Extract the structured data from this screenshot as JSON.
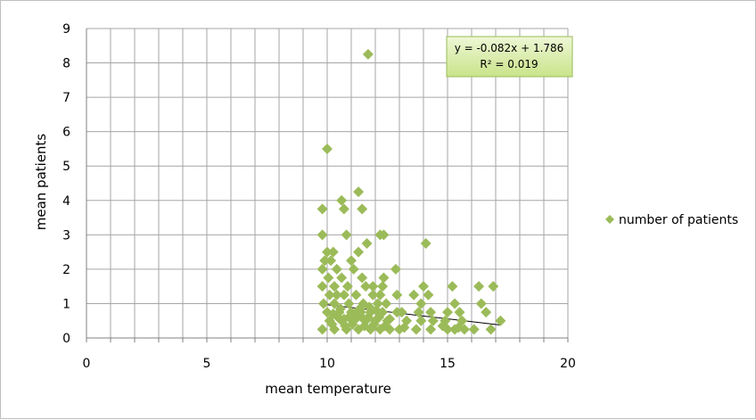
{
  "chart_data": {
    "type": "scatter",
    "xlabel": "mean temperature",
    "ylabel": "mean patients",
    "xlim": [
      0,
      20
    ],
    "ylim": [
      0,
      9
    ],
    "x_ticks": [
      0,
      5,
      10,
      15,
      20
    ],
    "y_ticks": [
      0,
      1,
      2,
      3,
      4,
      5,
      6,
      7,
      8,
      9
    ],
    "grid": true,
    "legend_position": "right",
    "marker_color": "#9bbb59",
    "series": [
      {
        "name": "number of patients",
        "points": [
          [
            11.7,
            8.25
          ],
          [
            10.0,
            5.5
          ],
          [
            11.3,
            4.25
          ],
          [
            10.6,
            4.0
          ],
          [
            9.8,
            3.75
          ],
          [
            10.7,
            3.75
          ],
          [
            11.45,
            3.75
          ],
          [
            9.8,
            3.0
          ],
          [
            10.8,
            3.0
          ],
          [
            12.2,
            3.0
          ],
          [
            12.35,
            3.0
          ],
          [
            11.65,
            2.75
          ],
          [
            14.1,
            2.75
          ],
          [
            10.0,
            2.5
          ],
          [
            10.25,
            2.5
          ],
          [
            11.3,
            2.5
          ],
          [
            9.9,
            2.25
          ],
          [
            10.15,
            2.25
          ],
          [
            11.0,
            2.25
          ],
          [
            9.8,
            2.0
          ],
          [
            10.4,
            2.0
          ],
          [
            11.1,
            2.0
          ],
          [
            12.85,
            2.0
          ],
          [
            10.05,
            1.75
          ],
          [
            10.6,
            1.75
          ],
          [
            11.45,
            1.75
          ],
          [
            12.35,
            1.75
          ],
          [
            9.8,
            1.5
          ],
          [
            10.3,
            1.5
          ],
          [
            10.85,
            1.5
          ],
          [
            11.6,
            1.5
          ],
          [
            11.9,
            1.5
          ],
          [
            12.3,
            1.5
          ],
          [
            14.0,
            1.5
          ],
          [
            15.2,
            1.5
          ],
          [
            16.3,
            1.5
          ],
          [
            16.9,
            1.5
          ],
          [
            10.1,
            1.25
          ],
          [
            10.4,
            1.25
          ],
          [
            10.7,
            1.25
          ],
          [
            11.2,
            1.25
          ],
          [
            11.9,
            1.25
          ],
          [
            12.2,
            1.25
          ],
          [
            12.9,
            1.25
          ],
          [
            13.6,
            1.25
          ],
          [
            14.2,
            1.25
          ],
          [
            9.85,
            1.0
          ],
          [
            10.3,
            1.0
          ],
          [
            10.9,
            1.0
          ],
          [
            11.5,
            1.0
          ],
          [
            12.1,
            1.0
          ],
          [
            12.45,
            1.0
          ],
          [
            13.9,
            1.0
          ],
          [
            15.3,
            1.0
          ],
          [
            16.4,
            1.0
          ],
          [
            10.0,
            0.75
          ],
          [
            10.5,
            0.75
          ],
          [
            11.0,
            0.75
          ],
          [
            11.4,
            0.75
          ],
          [
            11.8,
            0.75
          ],
          [
            12.3,
            0.75
          ],
          [
            12.9,
            0.75
          ],
          [
            13.1,
            0.75
          ],
          [
            13.8,
            0.75
          ],
          [
            14.3,
            0.75
          ],
          [
            15.0,
            0.75
          ],
          [
            15.5,
            0.75
          ],
          [
            16.6,
            0.75
          ],
          [
            10.1,
            0.5
          ],
          [
            10.6,
            0.5
          ],
          [
            11.1,
            0.5
          ],
          [
            11.6,
            0.5
          ],
          [
            12.0,
            0.5
          ],
          [
            12.5,
            0.5
          ],
          [
            13.3,
            0.5
          ],
          [
            13.9,
            0.5
          ],
          [
            14.4,
            0.5
          ],
          [
            14.9,
            0.5
          ],
          [
            15.6,
            0.5
          ],
          [
            17.2,
            0.5
          ],
          [
            9.8,
            0.25
          ],
          [
            10.3,
            0.25
          ],
          [
            10.8,
            0.25
          ],
          [
            11.3,
            0.25
          ],
          [
            11.8,
            0.25
          ],
          [
            12.2,
            0.25
          ],
          [
            12.6,
            0.25
          ],
          [
            13.0,
            0.25
          ],
          [
            13.7,
            0.25
          ],
          [
            14.3,
            0.25
          ],
          [
            15.0,
            0.25
          ],
          [
            15.3,
            0.25
          ],
          [
            15.7,
            0.25
          ],
          [
            16.1,
            0.25
          ],
          [
            16.8,
            0.25
          ],
          [
            10.2,
            0.4
          ],
          [
            10.45,
            0.6
          ],
          [
            10.75,
            0.35
          ],
          [
            10.9,
            0.6
          ],
          [
            11.05,
            0.4
          ],
          [
            11.25,
            0.6
          ],
          [
            11.55,
            0.35
          ],
          [
            11.7,
            0.6
          ],
          [
            11.95,
            0.4
          ],
          [
            12.15,
            0.6
          ],
          [
            12.4,
            0.35
          ],
          [
            10.55,
            0.85
          ],
          [
            11.35,
            0.85
          ],
          [
            11.75,
            0.9
          ],
          [
            10.25,
            0.7
          ],
          [
            10.7,
            0.55
          ],
          [
            11.15,
            0.7
          ],
          [
            11.5,
            0.55
          ],
          [
            11.85,
            0.3
          ],
          [
            12.05,
            0.8
          ],
          [
            12.6,
            0.55
          ],
          [
            13.2,
            0.3
          ],
          [
            14.8,
            0.35
          ],
          [
            15.45,
            0.3
          ]
        ]
      }
    ],
    "trendline": {
      "slope": -0.082,
      "intercept": 1.786,
      "x_range": [
        9.8,
        17.2
      ],
      "equation": "y = -0.082x + 1.786",
      "r2": "R² = 0.019"
    }
  }
}
